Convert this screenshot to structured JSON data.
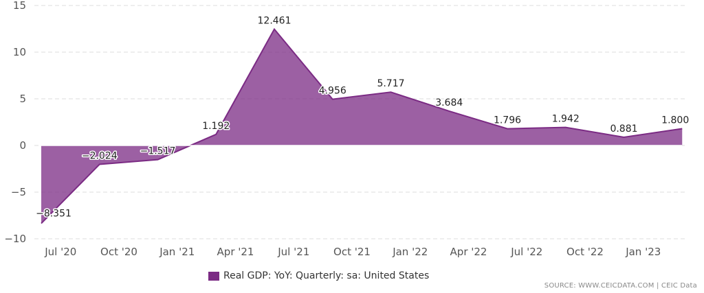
{
  "chart_data": {
    "type": "area",
    "x": [
      "2020-Q2",
      "2020-Q3",
      "2020-Q4",
      "2021-Q1",
      "2021-Q2",
      "2021-Q3",
      "2021-Q4",
      "2022-Q1",
      "2022-Q2",
      "2022-Q3",
      "2022-Q4",
      "2023-Q1"
    ],
    "x_tick_labels": [
      "Jul '20",
      "Oct '20",
      "Jan '21",
      "Apr '21",
      "Jul '21",
      "Oct '21",
      "Jan '22",
      "Apr '22",
      "Jul '22",
      "Oct '22",
      "Jan '23"
    ],
    "y_tick_labels": [
      "15",
      "10",
      "5",
      "0",
      "−5",
      "−10"
    ],
    "series": [
      {
        "name": "Real GDP: YoY: Quarterly: sa: United States",
        "values": [
          -8.351,
          -2.024,
          -1.517,
          1.192,
          12.461,
          4.956,
          5.717,
          3.684,
          1.796,
          1.942,
          0.881,
          1.8
        ],
        "labels": [
          "−8.351",
          "−2.024",
          "−1.517",
          "1.192",
          "12.461",
          "4.956",
          "5.717",
          "3.684",
          "1.796",
          "1.942",
          "0.881",
          "1.800"
        ],
        "color": "#7B2B84"
      }
    ],
    "ylim": [
      -10,
      15
    ],
    "yticks": [
      15,
      10,
      5,
      0,
      -5,
      -10
    ],
    "grid": true,
    "legend_position": "bottom-center",
    "title": "",
    "xlabel": "",
    "ylabel": ""
  },
  "legend": {
    "label": "Real GDP: YoY: Quarterly: sa: United States",
    "color": "#7B2B84"
  },
  "source": "SOURCE: WWW.CEICDATA.COM | CEIC Data"
}
